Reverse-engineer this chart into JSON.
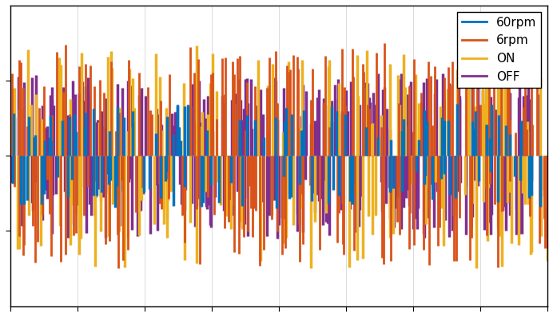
{
  "title": "",
  "xlabel": "",
  "ylabel": "",
  "legend_labels": [
    "60rpm",
    "6rpm",
    "ON",
    "OFF"
  ],
  "colors": [
    "#0072BD",
    "#D95319",
    "#EDB120",
    "#7E2F8E"
  ],
  "seed": 42,
  "background_color": "#ffffff",
  "figsize": [
    6.92,
    3.96
  ],
  "dpi": 100,
  "legend_loc": "upper right",
  "legend_fontsize": 11,
  "ylim": [
    -1.0,
    1.0
  ],
  "xlim": [
    0,
    1
  ],
  "n_blue": 120,
  "n_orange": 200,
  "n_yellow": 150,
  "n_purple": 300,
  "blue_amp": 0.35,
  "orange_amp": 0.75,
  "yellow_amp": 0.75,
  "purple_amp": 0.55,
  "blue_base": 0.0,
  "orange_base": 0.0,
  "yellow_base": 0.0,
  "purple_base": 0.0
}
